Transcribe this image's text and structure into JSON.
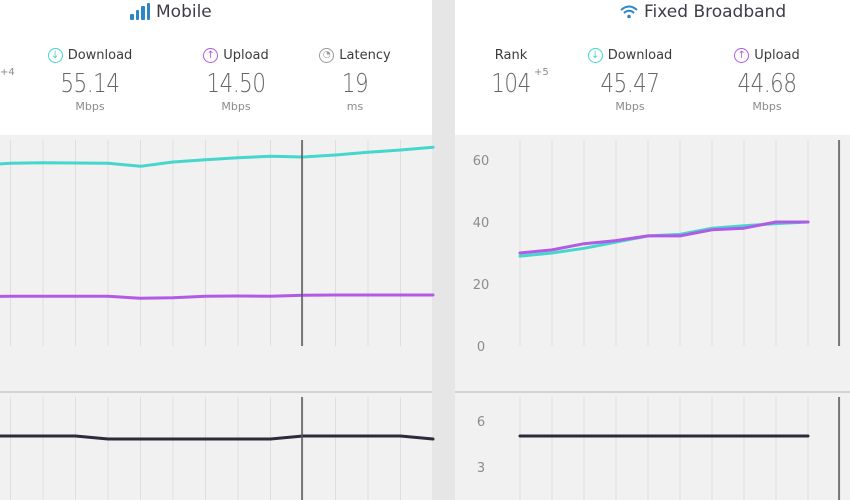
{
  "colors": {
    "download": "#45d6cd",
    "upload": "#b15ae6",
    "latency": "#2b2b3a",
    "title_icon": "#2c86c8"
  },
  "left_panel": {
    "title": "Mobile",
    "title_icon": "signal-bars-icon",
    "rank_delta": "+4",
    "metrics": [
      {
        "label": "Download",
        "icon": "download-arrow-icon",
        "value": "55.14",
        "unit": "Mbps"
      },
      {
        "label": "Upload",
        "icon": "upload-arrow-icon",
        "value": "14.50",
        "unit": "Mbps"
      },
      {
        "label": "Latency",
        "icon": "latency-icon",
        "value": "19",
        "unit": "ms"
      }
    ]
  },
  "right_panel": {
    "title": "Fixed Broadband",
    "title_icon": "wifi-icon",
    "metrics": [
      {
        "label": "Rank",
        "value": "104",
        "delta": "+5"
      },
      {
        "label": "Download",
        "icon": "download-arrow-icon",
        "value": "45.47",
        "unit": "Mbps"
      },
      {
        "label": "Upload",
        "icon": "upload-arrow-icon",
        "value": "44.68",
        "unit": "Mbps"
      }
    ]
  },
  "chart_data": [
    {
      "type": "line",
      "y_axis": "not visible",
      "grid": true,
      "series": [
        {
          "values": [
            54,
            54.5,
            54.7,
            54.6,
            54.5,
            53.6,
            54.9,
            55.6,
            56.2,
            56.6,
            56.4,
            57,
            57.8,
            58.5,
            59.3
          ]
        },
        {
          "values": [
            14.5,
            14.6,
            14.6,
            14.6,
            14.6,
            14.0,
            14.2,
            14.6,
            14.7,
            14.6,
            14.9,
            15.0,
            15.0,
            15.0,
            15.0
          ]
        }
      ]
    },
    {
      "type": "line",
      "y_axis": "not visible",
      "grid": true,
      "series": [
        {
          "values": [
            19,
            19,
            19,
            19,
            18.6,
            18.6,
            18.6,
            18.6,
            18.6,
            18.6,
            19,
            19,
            19,
            19,
            18.6
          ]
        }
      ]
    },
    {
      "type": "line",
      "ylim": [
        0,
        60
      ],
      "yticks": [
        "60",
        "40",
        "20",
        "0"
      ],
      "grid": true,
      "series": [
        {
          "values": [
            29,
            30,
            31.5,
            33.5,
            35.5,
            36,
            38,
            38.8,
            39.5,
            40
          ]
        },
        {
          "values": [
            30,
            31,
            33,
            34,
            35.5,
            35.5,
            37.5,
            38,
            40,
            40
          ]
        }
      ]
    },
    {
      "type": "line",
      "yticks": [
        "6",
        "3"
      ],
      "grid": true,
      "series": [
        {
          "values": [
            5,
            5,
            5,
            5,
            5,
            5,
            5,
            5,
            5,
            5
          ]
        }
      ]
    }
  ]
}
